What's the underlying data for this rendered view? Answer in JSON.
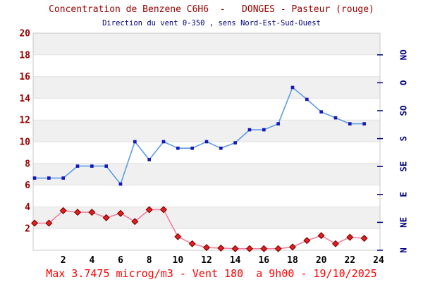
{
  "chart_data": {
    "type": "line",
    "title": "Concentration de Benzene C6H6  -   DONGES - Pasteur (rouge)",
    "subtitle": "Direction du vent 0-350 , sens Nord-Est-Sud-Ouest",
    "footer": "Max 3.7475 microg/m3 - Vent 180  a 9h00 - 19/10/2025",
    "x_hours": [
      0,
      1,
      2,
      3,
      4,
      5,
      6,
      7,
      8,
      9,
      10,
      11,
      12,
      13,
      14,
      15,
      16,
      17,
      18,
      19,
      20,
      21,
      22,
      23
    ],
    "series": [
      {
        "name": "Concentration de Benzene C6H6 (rouge)",
        "axis": "left",
        "marker": "diamond",
        "line_color": "#f080a0",
        "marker_color": "#dd2222",
        "marker_edge": "#8b0000",
        "values": [
          2.5,
          2.5,
          3.65,
          3.5,
          3.5,
          3.0,
          3.4,
          2.65,
          3.74,
          3.7475,
          1.25,
          0.6,
          0.25,
          0.2,
          0.15,
          0.15,
          0.15,
          0.15,
          0.3,
          0.9,
          1.35,
          0.6,
          1.2,
          1.1
        ]
      },
      {
        "name": "Direction du vent (bleu)",
        "axis": "right",
        "marker": "square",
        "line_color": "#5c9ce6",
        "marker_color": "#1515bb",
        "marker_edge": "#1515bb",
        "values": [
          6.65,
          6.65,
          6.65,
          7.75,
          7.75,
          7.75,
          6.1,
          10,
          8.35,
          10,
          9.4,
          9.4,
          10,
          9.4,
          9.9,
          11.1,
          11.1,
          11.65,
          15,
          13.9,
          12.75,
          12.2,
          11.65,
          11.65
        ],
        "values_degrees_approx": [
          116,
          116,
          116,
          136,
          136,
          136,
          107,
          175,
          146,
          175,
          165,
          165,
          175,
          165,
          173,
          194,
          194,
          204,
          263,
          243,
          223,
          214,
          204,
          204
        ]
      }
    ],
    "ylim": [
      0,
      20
    ],
    "xlim": [
      -0.1,
      24.1
    ],
    "y_ticks": [
      2,
      4,
      6,
      8,
      10,
      12,
      14,
      16,
      18,
      20
    ],
    "x_ticks": [
      2,
      4,
      6,
      8,
      10,
      12,
      14,
      16,
      18,
      20,
      22,
      24
    ],
    "right_axis": {
      "labels": [
        "N",
        "NE",
        "E",
        "SE",
        "S",
        "SO",
        "O",
        "NO"
      ],
      "degrees": [
        0,
        45,
        90,
        135,
        180,
        225,
        270,
        315
      ],
      "max_degrees": 350
    },
    "legend": "none",
    "grid": "horizontal-bands",
    "colors": {
      "title": "#990000",
      "subtitle": "#000080",
      "y_tick_labels": "#990000",
      "x_tick_labels": "#000000",
      "right_tick_labels": "#000080",
      "footer": "#ff0000",
      "band": "#f0f0f0",
      "gridline": "#e2e2e2",
      "plot_border": "#c8c8c8",
      "background": "#ffffff"
    }
  }
}
